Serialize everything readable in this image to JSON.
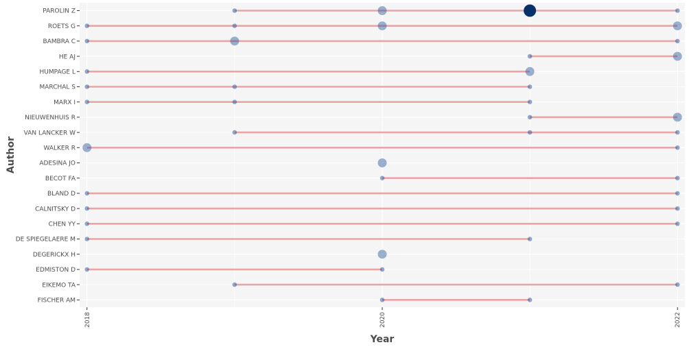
{
  "chart_data": {
    "type": "scatter",
    "title": "",
    "xlabel": "Year",
    "ylabel": "Author",
    "xlim": [
      2017.95,
      2022.05
    ],
    "x_ticks": [
      "2018",
      "2020",
      "2022"
    ],
    "grid": true,
    "colors": {
      "panel": "#f5f5f5",
      "grid": "#ffffff",
      "segment": "#e8a5a5",
      "point": "#27569b",
      "point_strong": "#08306b",
      "text": "#4d4d4d"
    },
    "authors": [
      "PAROLIN Z",
      "ROETS G",
      "BAMBRA C",
      "HE AJ",
      "HUMPAGE L",
      "MARCHAL S",
      "MARX I",
      "NIEUWENHUIS R",
      "VAN LANCKER W",
      "WALKER R",
      "ADESINA JO",
      "BECOT FA",
      "BLAND D",
      "CALNITSKY D",
      "CHEN YY",
      "DE SPIEGELAERE M",
      "DEGERICKX H",
      "EDMISTON D",
      "EIKEMO TA",
      "FISCHER AM"
    ],
    "segments": [
      {
        "author": "PAROLIN Z",
        "start": 2019,
        "end": 2022
      },
      {
        "author": "ROETS G",
        "start": 2018,
        "end": 2022
      },
      {
        "author": "BAMBRA C",
        "start": 2018,
        "end": 2022
      },
      {
        "author": "HE AJ",
        "start": 2021,
        "end": 2022
      },
      {
        "author": "HUMPAGE L",
        "start": 2018,
        "end": 2021
      },
      {
        "author": "MARCHAL S",
        "start": 2018,
        "end": 2021
      },
      {
        "author": "MARX I",
        "start": 2018,
        "end": 2021
      },
      {
        "author": "NIEUWENHUIS R",
        "start": 2021,
        "end": 2022
      },
      {
        "author": "VAN LANCKER W",
        "start": 2019,
        "end": 2022
      },
      {
        "author": "WALKER R",
        "start": 2018,
        "end": 2022
      },
      {
        "author": "BECOT FA",
        "start": 2020,
        "end": 2022
      },
      {
        "author": "BLAND D",
        "start": 2018,
        "end": 2022
      },
      {
        "author": "CALNITSKY D",
        "start": 2018,
        "end": 2022
      },
      {
        "author": "CHEN YY",
        "start": 2018,
        "end": 2022
      },
      {
        "author": "DE SPIEGELAERE M",
        "start": 2018,
        "end": 2021
      },
      {
        "author": "EDMISTON D",
        "start": 2018,
        "end": 2020
      },
      {
        "author": "EIKEMO TA",
        "start": 2019,
        "end": 2022
      },
      {
        "author": "FISCHER AM",
        "start": 2020,
        "end": 2021
      }
    ],
    "points": [
      {
        "author": "PAROLIN Z",
        "year": 2019,
        "size": 1
      },
      {
        "author": "PAROLIN Z",
        "year": 2020,
        "size": 2
      },
      {
        "author": "PAROLIN Z",
        "year": 2021,
        "size": 4
      },
      {
        "author": "PAROLIN Z",
        "year": 2022,
        "size": 1
      },
      {
        "author": "ROETS G",
        "year": 2018,
        "size": 1
      },
      {
        "author": "ROETS G",
        "year": 2019,
        "size": 1
      },
      {
        "author": "ROETS G",
        "year": 2020,
        "size": 2
      },
      {
        "author": "ROETS G",
        "year": 2022,
        "size": 2
      },
      {
        "author": "BAMBRA C",
        "year": 2018,
        "size": 1
      },
      {
        "author": "BAMBRA C",
        "year": 2019,
        "size": 2
      },
      {
        "author": "BAMBRA C",
        "year": 2022,
        "size": 1
      },
      {
        "author": "HE AJ",
        "year": 2021,
        "size": 1
      },
      {
        "author": "HE AJ",
        "year": 2022,
        "size": 2
      },
      {
        "author": "HUMPAGE L",
        "year": 2018,
        "size": 1
      },
      {
        "author": "HUMPAGE L",
        "year": 2021,
        "size": 2
      },
      {
        "author": "MARCHAL S",
        "year": 2018,
        "size": 1
      },
      {
        "author": "MARCHAL S",
        "year": 2019,
        "size": 1
      },
      {
        "author": "MARCHAL S",
        "year": 2021,
        "size": 1
      },
      {
        "author": "MARX I",
        "year": 2018,
        "size": 1
      },
      {
        "author": "MARX I",
        "year": 2019,
        "size": 1
      },
      {
        "author": "MARX I",
        "year": 2021,
        "size": 1
      },
      {
        "author": "NIEUWENHUIS R",
        "year": 2021,
        "size": 1
      },
      {
        "author": "NIEUWENHUIS R",
        "year": 2022,
        "size": 2
      },
      {
        "author": "VAN LANCKER W",
        "year": 2019,
        "size": 1
      },
      {
        "author": "VAN LANCKER W",
        "year": 2021,
        "size": 1
      },
      {
        "author": "VAN LANCKER W",
        "year": 2022,
        "size": 1
      },
      {
        "author": "WALKER R",
        "year": 2018,
        "size": 2
      },
      {
        "author": "WALKER R",
        "year": 2022,
        "size": 1
      },
      {
        "author": "ADESINA JO",
        "year": 2020,
        "size": 2
      },
      {
        "author": "BECOT FA",
        "year": 2020,
        "size": 1
      },
      {
        "author": "BECOT FA",
        "year": 2022,
        "size": 1
      },
      {
        "author": "BLAND D",
        "year": 2018,
        "size": 1
      },
      {
        "author": "BLAND D",
        "year": 2022,
        "size": 1
      },
      {
        "author": "CALNITSKY D",
        "year": 2018,
        "size": 1
      },
      {
        "author": "CALNITSKY D",
        "year": 2022,
        "size": 1
      },
      {
        "author": "CHEN YY",
        "year": 2018,
        "size": 1
      },
      {
        "author": "CHEN YY",
        "year": 2022,
        "size": 1
      },
      {
        "author": "DE SPIEGELAERE M",
        "year": 2018,
        "size": 1
      },
      {
        "author": "DE SPIEGELAERE M",
        "year": 2021,
        "size": 1
      },
      {
        "author": "DEGERICKX H",
        "year": 2020,
        "size": 2
      },
      {
        "author": "EDMISTON D",
        "year": 2018,
        "size": 1
      },
      {
        "author": "EDMISTON D",
        "year": 2020,
        "size": 1
      },
      {
        "author": "EIKEMO TA",
        "year": 2019,
        "size": 1
      },
      {
        "author": "EIKEMO TA",
        "year": 2022,
        "size": 1
      },
      {
        "author": "FISCHER AM",
        "year": 2020,
        "size": 1
      },
      {
        "author": "FISCHER AM",
        "year": 2021,
        "size": 1
      }
    ]
  }
}
